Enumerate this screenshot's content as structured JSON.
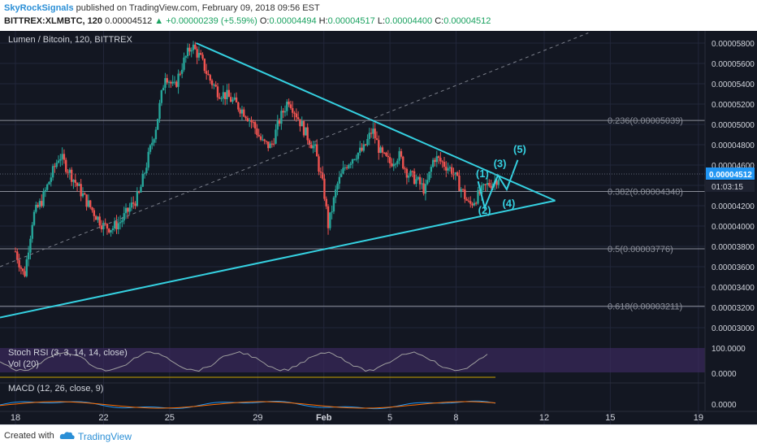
{
  "header": {
    "author": "SkyRockSignals",
    "published": "published on TradingView.com, February 09, 2018 09:56 EST",
    "symbol": "BITTREX:XLMBTC, 120",
    "last": "0.00004512",
    "change_arrow": "▲",
    "change": "+0.00000239 (+5.59%)",
    "o_label": "O:",
    "o_val": "0.00004494",
    "h_label": "H:",
    "h_val": "0.00004517",
    "l_label": "L:",
    "l_val": "0.00004400",
    "c_label": "C:",
    "c_val": "0.00004512"
  },
  "footer": {
    "created_with": "Created with",
    "brand": "TradingView",
    "logo_icon": "tradingview-cloud-icon"
  },
  "colors": {
    "background": "#131722",
    "grid": "#22273a",
    "up": "#26a69a",
    "down": "#ef5350",
    "trendline": "#35d0e0",
    "fib": "#8a8e99",
    "rsi_band": "#3b2a5c",
    "rsi_line": "#9e9e9e",
    "macd": "#2196f3",
    "signal": "#ff6d00",
    "last_price": "#2196f3"
  },
  "chart_data": {
    "type": "candlestick",
    "title": "Lumen / Bitcoin, 120, BITTREX",
    "price_axis": {
      "ylim": [
        2.88e-05,
        5.92e-05
      ],
      "ticks": [
        "0.00005800",
        "0.00005600",
        "0.00005400",
        "0.00005200",
        "0.00005000",
        "0.00004800",
        "0.00004600",
        "0.00004400",
        "0.00004200",
        "0.00004000",
        "0.00003800",
        "0.00003600",
        "0.00003400",
        "0.00003200",
        "0.00003000"
      ],
      "tick_values": [
        5.8e-05,
        5.6e-05,
        5.4e-05,
        5.2e-05,
        5e-05,
        4.8e-05,
        4.6e-05,
        4.4e-05,
        4.2e-05,
        4e-05,
        3.8e-05,
        3.6e-05,
        3.4e-05,
        3.2e-05,
        3e-05
      ],
      "last_price_label": "0.00004512",
      "last_price": 4.512e-05,
      "countdown_label": "01:03:15"
    },
    "time_axis": {
      "labels": [
        "18",
        "22",
        "25",
        "29",
        "Feb",
        "5",
        "8",
        "12",
        "15",
        "19"
      ],
      "day_index": [
        0,
        4,
        7,
        11,
        14,
        17,
        20,
        24,
        27,
        31
      ],
      "xlim_days": [
        -0.7,
        31.3
      ]
    },
    "series_close": [
      [
        0.0,
        3.75e-05
      ],
      [
        0.4,
        3.5e-05
      ],
      [
        0.8,
        4.1e-05
      ],
      [
        1.2,
        4.25e-05
      ],
      [
        1.6,
        4.48e-05
      ],
      [
        2.0,
        4.7e-05
      ],
      [
        2.4,
        4.55e-05
      ],
      [
        2.8,
        4.4e-05
      ],
      [
        3.2,
        4.25e-05
      ],
      [
        3.6,
        4.12e-05
      ],
      [
        4.0,
        4e-05
      ],
      [
        4.4,
        3.98e-05
      ],
      [
        4.8,
        4.05e-05
      ],
      [
        5.2,
        4.18e-05
      ],
      [
        5.6,
        4.3e-05
      ],
      [
        6.0,
        4.65e-05
      ],
      [
        6.4,
        5e-05
      ],
      [
        6.8,
        5.5e-05
      ],
      [
        7.2,
        5.35e-05
      ],
      [
        7.6,
        5.6e-05
      ],
      [
        8.0,
        5.78e-05
      ],
      [
        8.4,
        5.65e-05
      ],
      [
        8.8,
        5.45e-05
      ],
      [
        9.2,
        5.32e-05
      ],
      [
        9.6,
        5.28e-05
      ],
      [
        10.0,
        5.2e-05
      ],
      [
        10.4,
        5.12e-05
      ],
      [
        10.8,
        5e-05
      ],
      [
        11.2,
        4.82e-05
      ],
      [
        11.6,
        4.78e-05
      ],
      [
        12.0,
        5.05e-05
      ],
      [
        12.4,
        5.25e-05
      ],
      [
        12.8,
        5.08e-05
      ],
      [
        13.2,
        4.9e-05
      ],
      [
        13.6,
        4.75e-05
      ],
      [
        14.0,
        4.35e-05
      ],
      [
        14.2,
        4e-05
      ],
      [
        14.6,
        4.4e-05
      ],
      [
        15.0,
        4.6e-05
      ],
      [
        15.4,
        4.7e-05
      ],
      [
        15.8,
        4.75e-05
      ],
      [
        16.2,
        4.95e-05
      ],
      [
        16.6,
        4.7e-05
      ],
      [
        17.0,
        4.62e-05
      ],
      [
        17.4,
        4.7e-05
      ],
      [
        17.8,
        4.52e-05
      ],
      [
        18.2,
        4.45e-05
      ],
      [
        18.6,
        4.35e-05
      ],
      [
        19.0,
        4.68e-05
      ],
      [
        19.4,
        4.62e-05
      ],
      [
        19.8,
        4.55e-05
      ],
      [
        20.2,
        4.38e-05
      ],
      [
        20.6,
        4.2e-05
      ],
      [
        21.0,
        4.3e-05
      ],
      [
        21.4,
        4.4e-05
      ],
      [
        21.8,
        4.45e-05
      ],
      [
        22.0,
        4.51e-05
      ]
    ],
    "fib_levels": [
      {
        "label": "0.236(0.00005039)",
        "value": 5.039e-05
      },
      {
        "label": "0.382(0.00004340)",
        "value": 4.34e-05
      },
      {
        "label": "0.5(0.00003776)",
        "value": 3.776e-05
      },
      {
        "label": "0.618(0.00003211)",
        "value": 3.211e-05
      }
    ],
    "wave_labels": [
      "(1)",
      "(2)",
      "(3)",
      "(4)",
      "(5)"
    ],
    "indicators": {
      "stoch_rsi": {
        "label": "Stoch RSI (3, 3, 14, 14, close)",
        "ticks": [
          "100.0000",
          "0.0000"
        ]
      },
      "volume": {
        "label": "Vol (20)"
      },
      "macd": {
        "label": "MACD (12, 26, close, 9)",
        "ticks": [
          "0.0000"
        ]
      }
    }
  }
}
